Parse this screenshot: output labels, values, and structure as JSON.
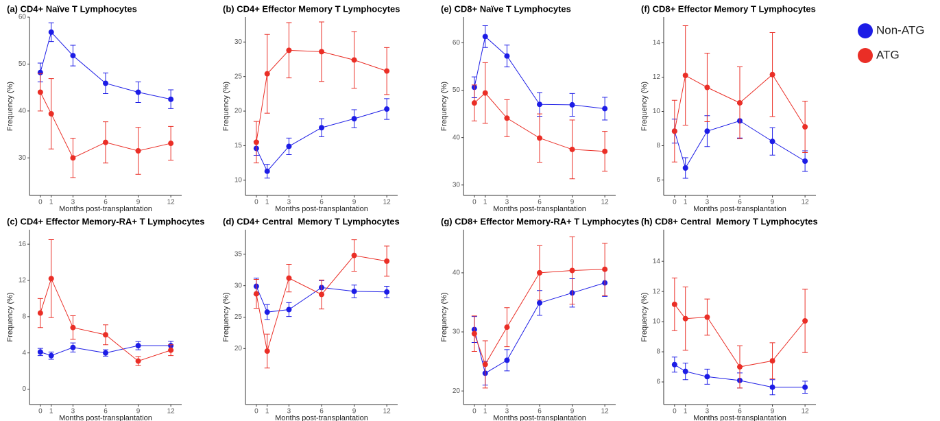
{
  "legend": [
    {
      "name": "Non-ATG",
      "color": "#1c1ce6"
    },
    {
      "name": "ATG",
      "color": "#ea2e26"
    }
  ],
  "chart_data": [
    {
      "type": "line",
      "title": "(a) CD4+ Naïve T Lymphocytes",
      "x_label": "Months post-transplantation",
      "y_label": "Frequency (%)",
      "x": [
        0,
        1,
        3,
        6,
        9,
        12
      ],
      "xlim": [
        -1,
        13
      ],
      "xticks": [
        0,
        1,
        3,
        6,
        9,
        12
      ],
      "ylim": [
        22,
        60
      ],
      "yticks": [
        30,
        40,
        50,
        60
      ],
      "series": [
        {
          "values": [
            48.2,
            56.8,
            51.8,
            45.9,
            44,
            42.5
          ],
          "errors": [
            2,
            2,
            2.2,
            2.2,
            2.2,
            2
          ]
        },
        {
          "values": [
            44,
            39.4,
            30,
            33.3,
            31.5,
            33.1
          ],
          "errors": [
            4,
            7.5,
            4.2,
            4.4,
            5,
            3.6
          ]
        }
      ]
    },
    {
      "type": "line",
      "title": "(b) CD4+ Effector Memory T Lymphocytes",
      "x_label": "Months post-transplantation",
      "y_label": "Frequency (%)",
      "x": [
        0,
        1,
        3,
        6,
        9,
        12
      ],
      "xlim": [
        -1,
        13
      ],
      "xticks": [
        0,
        1,
        3,
        6,
        9,
        12
      ],
      "ylim": [
        7.8,
        33.6
      ],
      "yticks": [
        10,
        15,
        20,
        25,
        30
      ],
      "series": [
        {
          "values": [
            14.6,
            11.3,
            14.9,
            17.6,
            18.9,
            20.3
          ],
          "errors": [
            1,
            1,
            1.2,
            1.3,
            1.3,
            1.5
          ]
        },
        {
          "values": [
            15.5,
            25.4,
            28.8,
            28.6,
            27.4,
            25.8
          ],
          "errors": [
            3,
            5.7,
            4,
            4.3,
            4.1,
            3.4
          ]
        }
      ]
    },
    {
      "type": "line",
      "title": "(e) CD8+ Naïve T Lymphocytes",
      "x_label": "Months post-transplantation",
      "y_label": "Frequency (%)",
      "x": [
        0,
        1,
        3,
        6,
        9,
        12
      ],
      "xlim": [
        -1,
        13
      ],
      "xticks": [
        0,
        1,
        3,
        6,
        9,
        12
      ],
      "ylim": [
        27.8,
        65.4
      ],
      "yticks": [
        30,
        40,
        50,
        60
      ],
      "series": [
        {
          "values": [
            50.6,
            61.3,
            57.2,
            47,
            46.9,
            46.1
          ],
          "errors": [
            2.2,
            2.3,
            2.3,
            2.5,
            2.4,
            2.4
          ]
        },
        {
          "values": [
            47.3,
            49.4,
            44.1,
            39.9,
            37.5,
            37.1
          ],
          "errors": [
            3.8,
            6.4,
            3.9,
            5.1,
            6.2,
            4.2
          ]
        }
      ]
    },
    {
      "type": "line",
      "title": "(f) CD8+ Effector Memory T Lymphocytes",
      "x_label": "Months post-transplantation",
      "y_label": "Frequency (%)",
      "x": [
        0,
        1,
        3,
        6,
        9,
        12
      ],
      "xlim": [
        -1,
        13
      ],
      "xticks": [
        0,
        1,
        3,
        6,
        9,
        12
      ],
      "ylim": [
        5.1,
        15.5
      ],
      "yticks": [
        6,
        8,
        10,
        12,
        14
      ],
      "series": [
        {
          "values": [
            8.85,
            6.7,
            8.85,
            9.45,
            8.25,
            7.1
          ],
          "errors": [
            0.7,
            0.6,
            0.9,
            1,
            0.8,
            0.6
          ]
        },
        {
          "values": [
            8.85,
            12.1,
            11.4,
            10.5,
            12.15,
            9.1
          ],
          "errors": [
            1.8,
            2.9,
            2,
            2.1,
            2.45,
            1.5
          ]
        }
      ]
    },
    {
      "type": "line",
      "title": "(c) CD4+ Effector Memory-RA+ T Lymphocytes",
      "x_label": "Months post-transplantation",
      "y_label": "Frequency (%)",
      "x": [
        0,
        1,
        3,
        6,
        9,
        12
      ],
      "xlim": [
        -1,
        13
      ],
      "xticks": [
        0,
        1,
        3,
        6,
        9,
        12
      ],
      "ylim": [
        -1.7,
        17.6
      ],
      "yticks": [
        0,
        4,
        8,
        12,
        16
      ],
      "series": [
        {
          "values": [
            4.1,
            3.7,
            4.6,
            4,
            4.8,
            4.8
          ],
          "errors": [
            0.4,
            0.4,
            0.5,
            0.35,
            0.45,
            0.5
          ]
        },
        {
          "values": [
            8.4,
            12.2,
            6.8,
            6,
            3.1,
            4.3
          ],
          "errors": [
            1.6,
            4.3,
            1.3,
            1.1,
            0.5,
            0.6
          ]
        }
      ]
    },
    {
      "type": "line",
      "title": "(d) CD4+ Central  Memory T Lymphocytes",
      "x_label": "Months post-transplantation",
      "y_label": "Frequency (%)",
      "x": [
        0,
        1,
        3,
        6,
        9,
        12
      ],
      "xlim": [
        -1,
        13
      ],
      "xticks": [
        0,
        1,
        3,
        6,
        9,
        12
      ],
      "ylim": [
        11.1,
        38.9
      ],
      "yticks": [
        20,
        25,
        30,
        35
      ],
      "series": [
        {
          "values": [
            29.9,
            25.8,
            26.2,
            29.7,
            29.1,
            29
          ],
          "errors": [
            1.3,
            1.2,
            1.1,
            1.1,
            1,
            0.9
          ]
        },
        {
          "values": [
            28.7,
            19.6,
            31.2,
            28.6,
            34.8,
            33.9
          ],
          "errors": [
            2.3,
            2.7,
            2.2,
            2.3,
            2.5,
            2.4
          ]
        }
      ]
    },
    {
      "type": "line",
      "title": "(g) CD8+ Effector Memory-RA+ T Lymphocytes",
      "x_label": "Months post-transplantation",
      "y_label": "Frequency (%)",
      "x": [
        0,
        1,
        3,
        6,
        9,
        12
      ],
      "xlim": [
        -1,
        13
      ],
      "xticks": [
        0,
        1,
        3,
        6,
        9,
        12
      ],
      "ylim": [
        17.7,
        47.3
      ],
      "yticks": [
        20,
        30,
        40
      ],
      "series": [
        {
          "values": [
            30.4,
            23,
            25.2,
            34.9,
            36.6,
            38.3
          ],
          "errors": [
            2.2,
            2,
            1.8,
            2.1,
            2.4,
            2.3
          ]
        },
        {
          "values": [
            29.7,
            24.5,
            30.8,
            40,
            40.4,
            40.6
          ],
          "errors": [
            3,
            4,
            3.3,
            4.6,
            5.7,
            4.4
          ]
        }
      ]
    },
    {
      "type": "line",
      "title": "(h) CD8+ Central  Memory T Lymphocytes",
      "x_label": "Months post-transplantation",
      "y_label": "Frequency (%)",
      "x": [
        0,
        1,
        3,
        6,
        9,
        12
      ],
      "xlim": [
        -1,
        13
      ],
      "xticks": [
        0,
        1,
        3,
        6,
        9,
        12
      ],
      "ylim": [
        4.5,
        16.1
      ],
      "yticks": [
        6,
        8,
        10,
        12,
        14
      ],
      "series": [
        {
          "values": [
            7.15,
            6.7,
            6.35,
            6.1,
            5.65,
            5.65
          ],
          "errors": [
            0.5,
            0.55,
            0.5,
            0.5,
            0.5,
            0.4
          ]
        },
        {
          "values": [
            11.15,
            10.2,
            10.3,
            7,
            7.4,
            10.05
          ],
          "errors": [
            1.75,
            2.1,
            1.2,
            1.4,
            1.2,
            2.1
          ]
        }
      ]
    }
  ]
}
